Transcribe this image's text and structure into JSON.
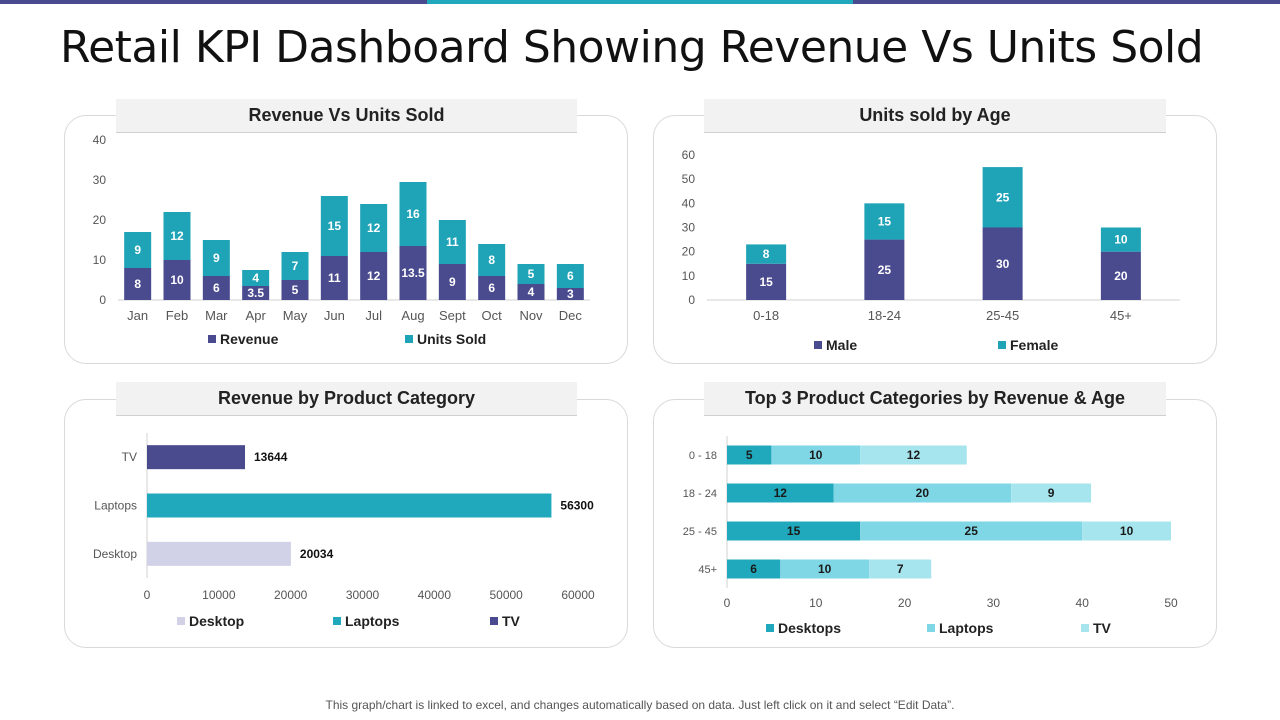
{
  "title": "Retail KPI Dashboard Showing Revenue Vs Units Sold",
  "footer": "This graph/chart is linked to excel, and changes automatically based on data. Just left click on it and select “Edit Data”.",
  "colors": {
    "navy": "#4a4a8f",
    "teal": "#20a8bc",
    "lightteal": "#7fd6e4",
    "lavender": "#d1d1e8",
    "bar1": "#4a4a8f",
    "bar2": "#1fa3b7"
  },
  "panels": {
    "rev_units": "Revenue Vs Units Sold",
    "age": "Units sold by Age",
    "category": "Revenue by Product Category",
    "top3": "Top 3 Product Categories by Revenue & Age"
  },
  "chart_data": [
    {
      "type": "bar",
      "stacked": true,
      "title": "Revenue Vs Units Sold",
      "categories": [
        "Jan",
        "Feb",
        "Mar",
        "Apr",
        "May",
        "Jun",
        "Jul",
        "Aug",
        "Sept",
        "Oct",
        "Nov",
        "Dec"
      ],
      "series": [
        {
          "name": "Revenue",
          "values": [
            8,
            10,
            6,
            3.5,
            5,
            11,
            12,
            13.5,
            9,
            6,
            4,
            3
          ]
        },
        {
          "name": "Units Sold",
          "values": [
            9,
            12,
            9,
            4,
            7,
            15,
            12,
            16,
            11,
            8,
            5,
            6
          ]
        }
      ],
      "ylim": [
        0,
        40
      ],
      "yticks": [
        0,
        10,
        20,
        30,
        40
      ]
    },
    {
      "type": "bar",
      "stacked": true,
      "title": "Units sold by Age",
      "categories": [
        "0-18",
        "18-24",
        "25-45",
        "45+"
      ],
      "series": [
        {
          "name": "Male",
          "values": [
            15,
            25,
            30,
            20
          ]
        },
        {
          "name": "Female",
          "values": [
            8,
            15,
            25,
            10
          ]
        }
      ],
      "ylim": [
        0,
        60
      ],
      "yticks": [
        0,
        10,
        20,
        30,
        40,
        50,
        60
      ]
    },
    {
      "type": "bar",
      "orientation": "horizontal",
      "title": "Revenue by Product Category",
      "categories": [
        "TV",
        "Laptops",
        "Desktop"
      ],
      "values": [
        13644,
        56300,
        20034
      ],
      "legend": [
        "Desktop",
        "Laptops",
        "TV"
      ],
      "xlim": [
        0,
        60000
      ],
      "xticks": [
        0,
        10000,
        20000,
        30000,
        40000,
        50000,
        60000
      ]
    },
    {
      "type": "bar",
      "orientation": "horizontal",
      "stacked": true,
      "title": "Top 3 Product Categories by Revenue & Age",
      "categories": [
        "0 - 18",
        "18 - 24",
        "25 - 45",
        "45+"
      ],
      "series": [
        {
          "name": "Desktops",
          "values": [
            5,
            12,
            15,
            6
          ]
        },
        {
          "name": "Laptops",
          "values": [
            10,
            20,
            25,
            10
          ]
        },
        {
          "name": "TV",
          "values": [
            12,
            9,
            10,
            7
          ]
        }
      ],
      "xlim": [
        0,
        50
      ],
      "xticks": [
        0,
        10,
        20,
        30,
        40,
        50
      ]
    }
  ]
}
